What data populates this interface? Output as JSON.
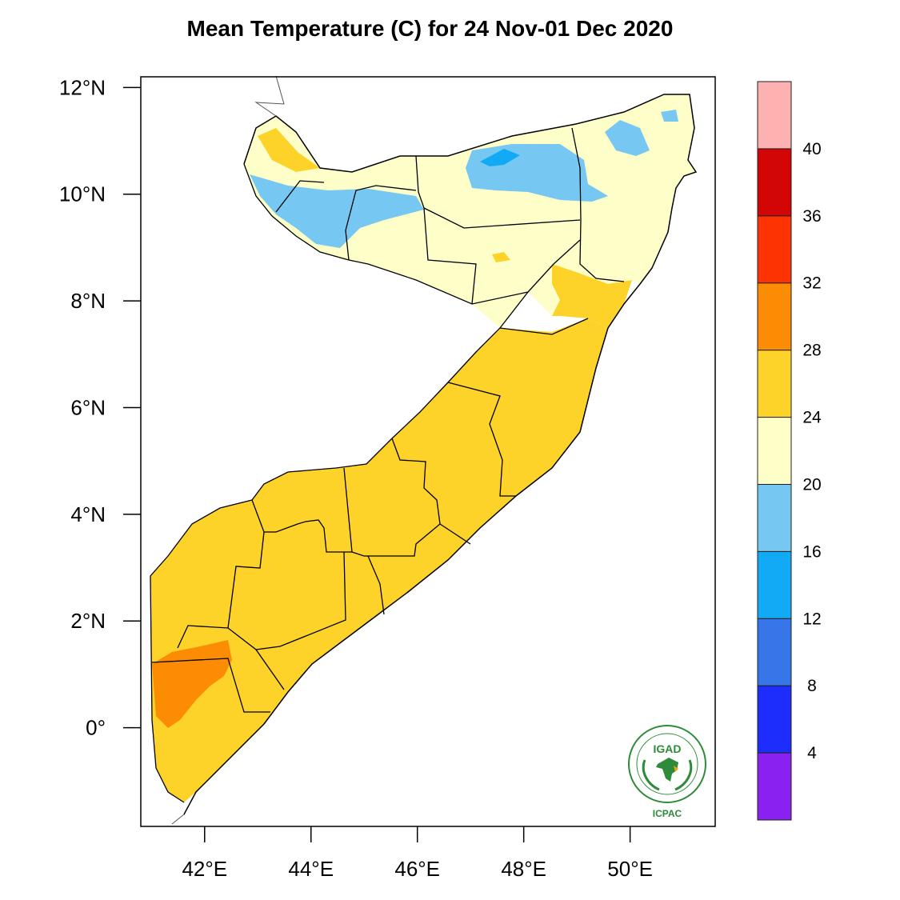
{
  "title": "Mean Temperature (C) for 24 Nov-01 Dec 2020",
  "map": {
    "lon_range": [
      40.8,
      51.6
    ],
    "lat_range": [
      -1.85,
      12.2
    ],
    "x_ticks": [
      {
        "value": 42,
        "label": "42°E"
      },
      {
        "value": 44,
        "label": "44°E"
      },
      {
        "value": 46,
        "label": "46°E"
      },
      {
        "value": 48,
        "label": "48°E"
      },
      {
        "value": 50,
        "label": "50°E"
      }
    ],
    "y_ticks": [
      {
        "value": 12,
        "label": "12°N"
      },
      {
        "value": 10,
        "label": "10°N"
      },
      {
        "value": 8,
        "label": "8°N"
      },
      {
        "value": 6,
        "label": "6°N"
      },
      {
        "value": 4,
        "label": "4°N"
      },
      {
        "value": 2,
        "label": "2°N"
      },
      {
        "value": 0,
        "label": "0°"
      }
    ],
    "colors": {
      "c16_20": "#76c8f2",
      "c12_16": "#12a9f5",
      "c20_24": "#fefec8",
      "c24_28": "#fdd32a",
      "c28_32": "#fc8c03"
    }
  },
  "colorbar": {
    "bins": [
      {
        "color": "#8a21f0"
      },
      {
        "color": "#1d2dfb"
      },
      {
        "color": "#3676e8"
      },
      {
        "color": "#12a9f5"
      },
      {
        "color": "#76c8f2"
      },
      {
        "color": "#fefec8"
      },
      {
        "color": "#fdd32a"
      },
      {
        "color": "#fc8c03"
      },
      {
        "color": "#fd3303"
      },
      {
        "color": "#d20606"
      },
      {
        "color": "#feb1b1"
      }
    ],
    "labels": [
      "4",
      "8",
      "12",
      "16",
      "20",
      "24",
      "28",
      "32",
      "36",
      "40"
    ]
  },
  "logo": {
    "name": "IGAD",
    "caption": "ICPAC"
  }
}
